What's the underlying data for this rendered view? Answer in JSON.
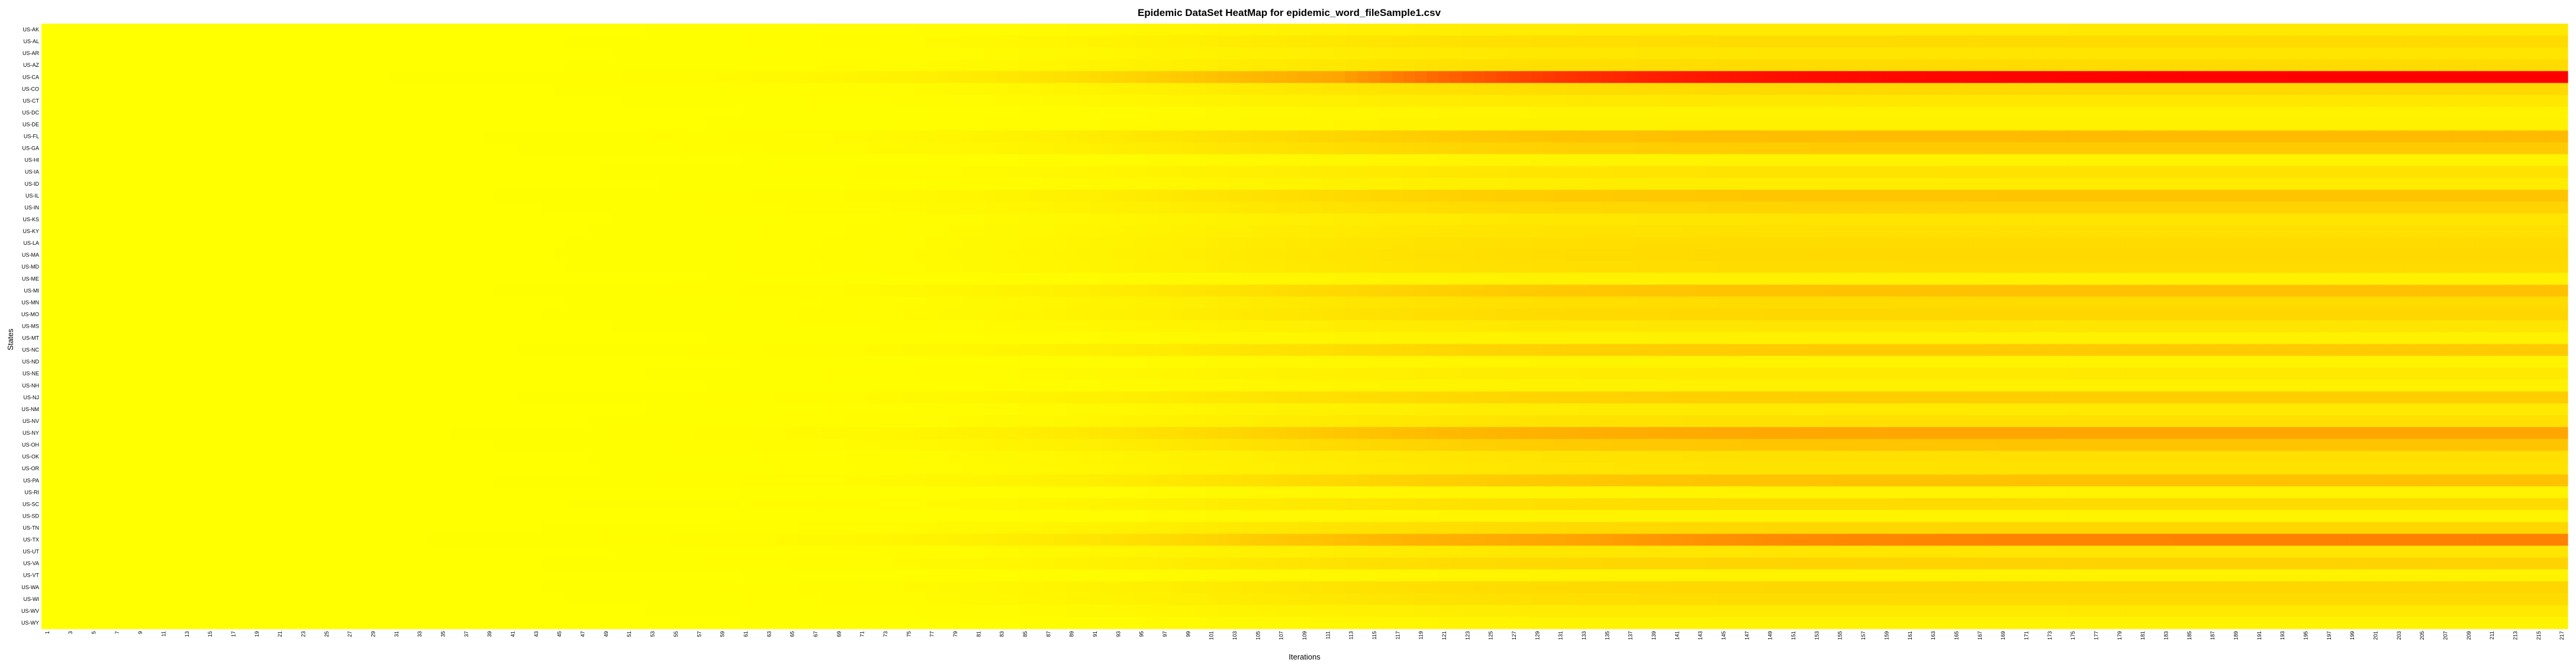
{
  "chart_data": {
    "type": "heatmap",
    "title": "Epidemic DataSet HeatMap for epidemic_word_fileSample1.csv",
    "xlabel": "Iterations",
    "ylabel": "States",
    "x_tick_start": 1,
    "x_tick_end": 217,
    "x_tick_step": 2,
    "rows": [
      "US-AK",
      "US-AL",
      "US-AR",
      "US-AZ",
      "US-CA",
      "US-CO",
      "US-CT",
      "US-DC",
      "US-DE",
      "US-FL",
      "US-GA",
      "US-HI",
      "US-IA",
      "US-ID",
      "US-IL",
      "US-IN",
      "US-KS",
      "US-KY",
      "US-LA",
      "US-MA",
      "US-MD",
      "US-ME",
      "US-MI",
      "US-MN",
      "US-MO",
      "US-MS",
      "US-MT",
      "US-NC",
      "US-ND",
      "US-NE",
      "US-NH",
      "US-NJ",
      "US-NM",
      "US-NV",
      "US-NY",
      "US-OH",
      "US-OK",
      "US-OR",
      "US-PA",
      "US-RI",
      "US-SC",
      "US-SD",
      "US-TN",
      "US-TX",
      "US-UT",
      "US-VA",
      "US-VT",
      "US-WA",
      "US-WI",
      "US-WV",
      "US-WY"
    ],
    "final_intensity": [
      0.18,
      0.3,
      0.22,
      0.3,
      1.0,
      0.32,
      0.2,
      0.1,
      0.12,
      0.52,
      0.42,
      0.1,
      0.24,
      0.16,
      0.46,
      0.36,
      0.22,
      0.26,
      0.3,
      0.32,
      0.3,
      0.12,
      0.48,
      0.3,
      0.34,
      0.22,
      0.12,
      0.42,
      0.1,
      0.18,
      0.12,
      0.4,
      0.18,
      0.26,
      0.66,
      0.46,
      0.26,
      0.24,
      0.48,
      0.1,
      0.3,
      0.1,
      0.34,
      0.74,
      0.22,
      0.36,
      0.1,
      0.34,
      0.3,
      0.18,
      0.1
    ],
    "color_scale": [
      "#ffff00",
      "#ffd700",
      "#ffa500",
      "#ff0000"
    ]
  }
}
